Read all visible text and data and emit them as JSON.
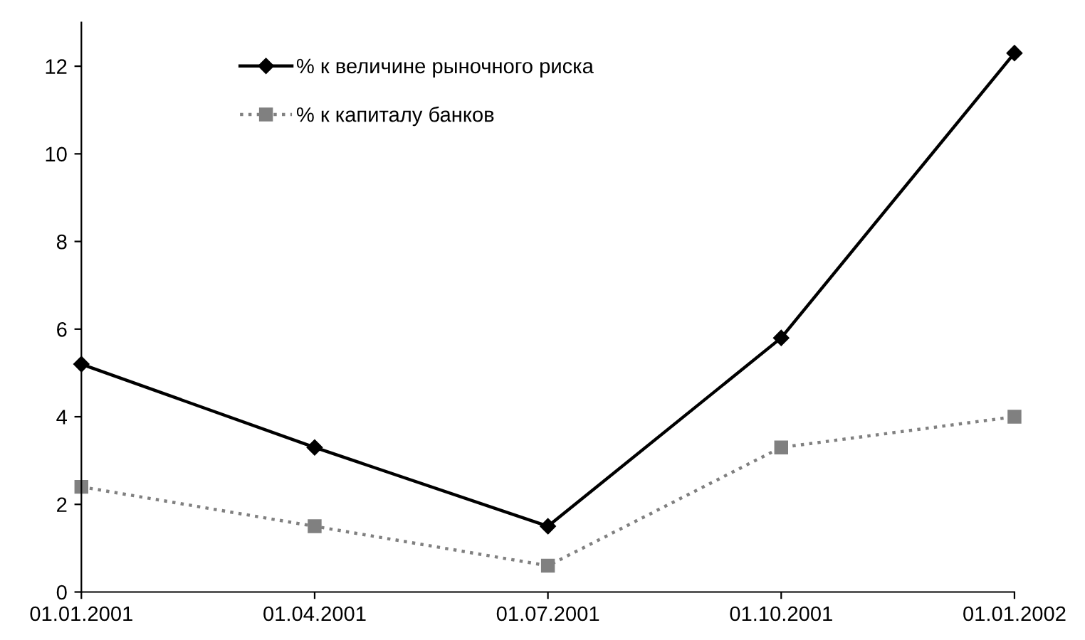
{
  "chart_data": {
    "type": "line",
    "categories": [
      "01.01.2001",
      "01.04.2001",
      "01.07.2001",
      "01.10.2001",
      "01.01.2002"
    ],
    "series": [
      {
        "name": "% к величине рыночного риска",
        "color": "#000000",
        "marker": "diamond",
        "line_style": "solid",
        "values": [
          5.2,
          3.3,
          1.5,
          5.8,
          12.3
        ]
      },
      {
        "name": "% к капиталу банков",
        "color": "#808080",
        "marker": "square",
        "line_style": "dotted",
        "values": [
          2.4,
          1.5,
          0.6,
          3.3,
          4.0
        ]
      }
    ],
    "ylim": [
      0,
      13
    ],
    "yticks": [
      0,
      2,
      4,
      6,
      8,
      10,
      12
    ],
    "grid": false,
    "legend": "top"
  }
}
